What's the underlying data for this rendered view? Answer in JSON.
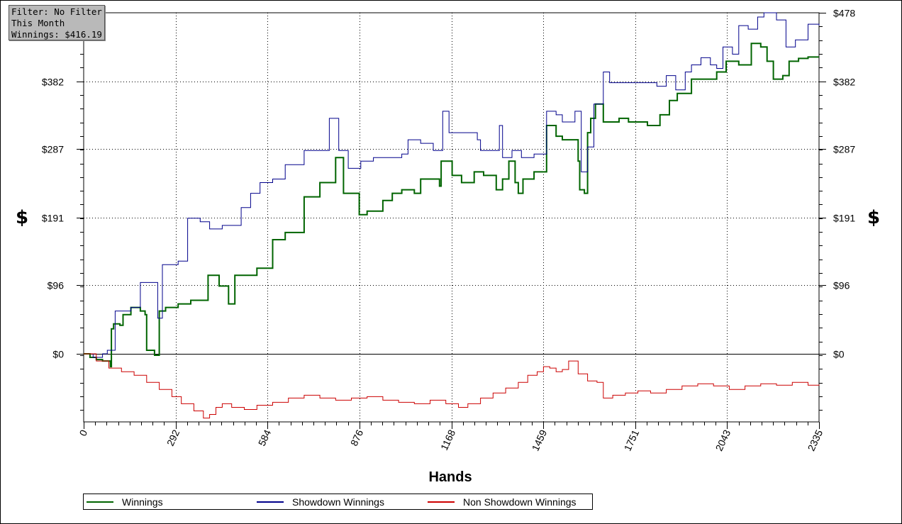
{
  "info_box": {
    "line1": "Filter: No Filter",
    "line2": "This Month",
    "line3": "Winnings: $416.19"
  },
  "ylabel_left": "$",
  "ylabel_right": "$",
  "chart_data": {
    "type": "line",
    "xlabel": "Hands",
    "ylabel": "$",
    "xlim": [
      0,
      2335
    ],
    "ylim": [
      -96,
      478
    ],
    "x_ticks": [
      "0",
      "292",
      "584",
      "876",
      "1168",
      "1459",
      "1751",
      "2043",
      "2335"
    ],
    "x_tick_values": [
      0,
      292,
      584,
      876,
      1168,
      1459,
      1751,
      2043,
      2335
    ],
    "y_ticks": [
      "$0",
      "$96",
      "$191",
      "$287",
      "$382",
      "$478"
    ],
    "y_tick_values": [
      0,
      96,
      191,
      287,
      382,
      478
    ],
    "grid": true,
    "legend_position": "bottom-left",
    "series": [
      {
        "name": "Winnings",
        "color": "#006400",
        "points": [
          [
            0,
            0
          ],
          [
            20,
            -5
          ],
          [
            40,
            -8
          ],
          [
            60,
            -10
          ],
          [
            85,
            -18
          ],
          [
            88,
            35
          ],
          [
            95,
            42
          ],
          [
            115,
            40
          ],
          [
            125,
            55
          ],
          [
            150,
            65
          ],
          [
            180,
            60
          ],
          [
            195,
            55
          ],
          [
            200,
            5
          ],
          [
            225,
            -2
          ],
          [
            240,
            60
          ],
          [
            260,
            65
          ],
          [
            300,
            70
          ],
          [
            340,
            75
          ],
          [
            395,
            110
          ],
          [
            430,
            95
          ],
          [
            460,
            70
          ],
          [
            480,
            110
          ],
          [
            520,
            110
          ],
          [
            550,
            120
          ],
          [
            600,
            160
          ],
          [
            640,
            170
          ],
          [
            700,
            220
          ],
          [
            750,
            240
          ],
          [
            800,
            275
          ],
          [
            825,
            225
          ],
          [
            875,
            195
          ],
          [
            900,
            200
          ],
          [
            950,
            215
          ],
          [
            980,
            225
          ],
          [
            1010,
            230
          ],
          [
            1050,
            225
          ],
          [
            1070,
            245
          ],
          [
            1130,
            235
          ],
          [
            1135,
            270
          ],
          [
            1170,
            250
          ],
          [
            1200,
            240
          ],
          [
            1240,
            255
          ],
          [
            1270,
            250
          ],
          [
            1310,
            230
          ],
          [
            1330,
            245
          ],
          [
            1350,
            270
          ],
          [
            1370,
            240
          ],
          [
            1380,
            225
          ],
          [
            1395,
            245
          ],
          [
            1430,
            255
          ],
          [
            1470,
            285
          ],
          [
            1470,
            320
          ],
          [
            1500,
            305
          ],
          [
            1520,
            300
          ],
          [
            1570,
            270
          ],
          [
            1575,
            230
          ],
          [
            1590,
            225
          ],
          [
            1600,
            310
          ],
          [
            1610,
            330
          ],
          [
            1625,
            350
          ],
          [
            1650,
            325
          ],
          [
            1700,
            330
          ],
          [
            1730,
            325
          ],
          [
            1790,
            320
          ],
          [
            1830,
            335
          ],
          [
            1860,
            355
          ],
          [
            1885,
            365
          ],
          [
            1930,
            385
          ],
          [
            1970,
            385
          ],
          [
            2010,
            395
          ],
          [
            2040,
            410
          ],
          [
            2080,
            405
          ],
          [
            2120,
            435
          ],
          [
            2150,
            430
          ],
          [
            2170,
            410
          ],
          [
            2190,
            385
          ],
          [
            2220,
            390
          ],
          [
            2240,
            410
          ],
          [
            2270,
            414
          ],
          [
            2300,
            416
          ],
          [
            2335,
            416
          ]
        ]
      },
      {
        "name": "Showdown Winnings",
        "color": "#00008b",
        "points": [
          [
            0,
            0
          ],
          [
            30,
            -5
          ],
          [
            60,
            0
          ],
          [
            75,
            5
          ],
          [
            90,
            5
          ],
          [
            100,
            60
          ],
          [
            130,
            60
          ],
          [
            150,
            65
          ],
          [
            180,
            100
          ],
          [
            225,
            100
          ],
          [
            235,
            50
          ],
          [
            245,
            50
          ],
          [
            250,
            125
          ],
          [
            300,
            130
          ],
          [
            330,
            190
          ],
          [
            370,
            185
          ],
          [
            400,
            175
          ],
          [
            440,
            180
          ],
          [
            480,
            180
          ],
          [
            500,
            205
          ],
          [
            530,
            225
          ],
          [
            560,
            240
          ],
          [
            600,
            245
          ],
          [
            640,
            265
          ],
          [
            700,
            285
          ],
          [
            750,
            285
          ],
          [
            780,
            330
          ],
          [
            810,
            285
          ],
          [
            840,
            260
          ],
          [
            880,
            270
          ],
          [
            920,
            275
          ],
          [
            970,
            275
          ],
          [
            1010,
            280
          ],
          [
            1030,
            300
          ],
          [
            1070,
            295
          ],
          [
            1110,
            285
          ],
          [
            1140,
            340
          ],
          [
            1160,
            310
          ],
          [
            1210,
            310
          ],
          [
            1250,
            300
          ],
          [
            1260,
            285
          ],
          [
            1300,
            285
          ],
          [
            1320,
            320
          ],
          [
            1330,
            275
          ],
          [
            1360,
            285
          ],
          [
            1390,
            275
          ],
          [
            1430,
            280
          ],
          [
            1450,
            280
          ],
          [
            1470,
            340
          ],
          [
            1500,
            335
          ],
          [
            1520,
            325
          ],
          [
            1560,
            340
          ],
          [
            1580,
            255
          ],
          [
            1600,
            290
          ],
          [
            1620,
            350
          ],
          [
            1650,
            395
          ],
          [
            1670,
            380
          ],
          [
            1700,
            380
          ],
          [
            1720,
            380
          ],
          [
            1760,
            380
          ],
          [
            1820,
            375
          ],
          [
            1850,
            390
          ],
          [
            1880,
            370
          ],
          [
            1910,
            395
          ],
          [
            1930,
            405
          ],
          [
            1960,
            415
          ],
          [
            1990,
            405
          ],
          [
            2010,
            400
          ],
          [
            2030,
            430
          ],
          [
            2060,
            420
          ],
          [
            2080,
            460
          ],
          [
            2110,
            455
          ],
          [
            2140,
            472
          ],
          [
            2160,
            478
          ],
          [
            2200,
            468
          ],
          [
            2230,
            430
          ],
          [
            2260,
            440
          ],
          [
            2300,
            462
          ],
          [
            2335,
            460
          ]
        ]
      },
      {
        "name": "Non Showdown Winnings",
        "color": "#cc0000",
        "points": [
          [
            0,
            0
          ],
          [
            40,
            -10
          ],
          [
            80,
            -20
          ],
          [
            120,
            -25
          ],
          [
            160,
            -30
          ],
          [
            200,
            -40
          ],
          [
            240,
            -50
          ],
          [
            280,
            -60
          ],
          [
            310,
            -70
          ],
          [
            350,
            -80
          ],
          [
            380,
            -90
          ],
          [
            400,
            -85
          ],
          [
            420,
            -75
          ],
          [
            440,
            -70
          ],
          [
            470,
            -75
          ],
          [
            510,
            -78
          ],
          [
            550,
            -72
          ],
          [
            600,
            -68
          ],
          [
            650,
            -62
          ],
          [
            700,
            -58
          ],
          [
            750,
            -62
          ],
          [
            800,
            -65
          ],
          [
            850,
            -62
          ],
          [
            900,
            -60
          ],
          [
            950,
            -65
          ],
          [
            1000,
            -68
          ],
          [
            1050,
            -70
          ],
          [
            1100,
            -65
          ],
          [
            1150,
            -70
          ],
          [
            1190,
            -75
          ],
          [
            1220,
            -70
          ],
          [
            1260,
            -62
          ],
          [
            1300,
            -55
          ],
          [
            1340,
            -48
          ],
          [
            1380,
            -40
          ],
          [
            1410,
            -30
          ],
          [
            1440,
            -25
          ],
          [
            1460,
            -18
          ],
          [
            1480,
            -20
          ],
          [
            1500,
            -25
          ],
          [
            1520,
            -22
          ],
          [
            1540,
            -10
          ],
          [
            1570,
            -28
          ],
          [
            1600,
            -38
          ],
          [
            1630,
            -40
          ],
          [
            1650,
            -62
          ],
          [
            1680,
            -58
          ],
          [
            1720,
            -55
          ],
          [
            1760,
            -52
          ],
          [
            1800,
            -55
          ],
          [
            1850,
            -50
          ],
          [
            1900,
            -45
          ],
          [
            1950,
            -42
          ],
          [
            2000,
            -45
          ],
          [
            2050,
            -50
          ],
          [
            2100,
            -45
          ],
          [
            2150,
            -42
          ],
          [
            2200,
            -44
          ],
          [
            2250,
            -40
          ],
          [
            2300,
            -44
          ],
          [
            2335,
            -43
          ]
        ]
      }
    ]
  }
}
